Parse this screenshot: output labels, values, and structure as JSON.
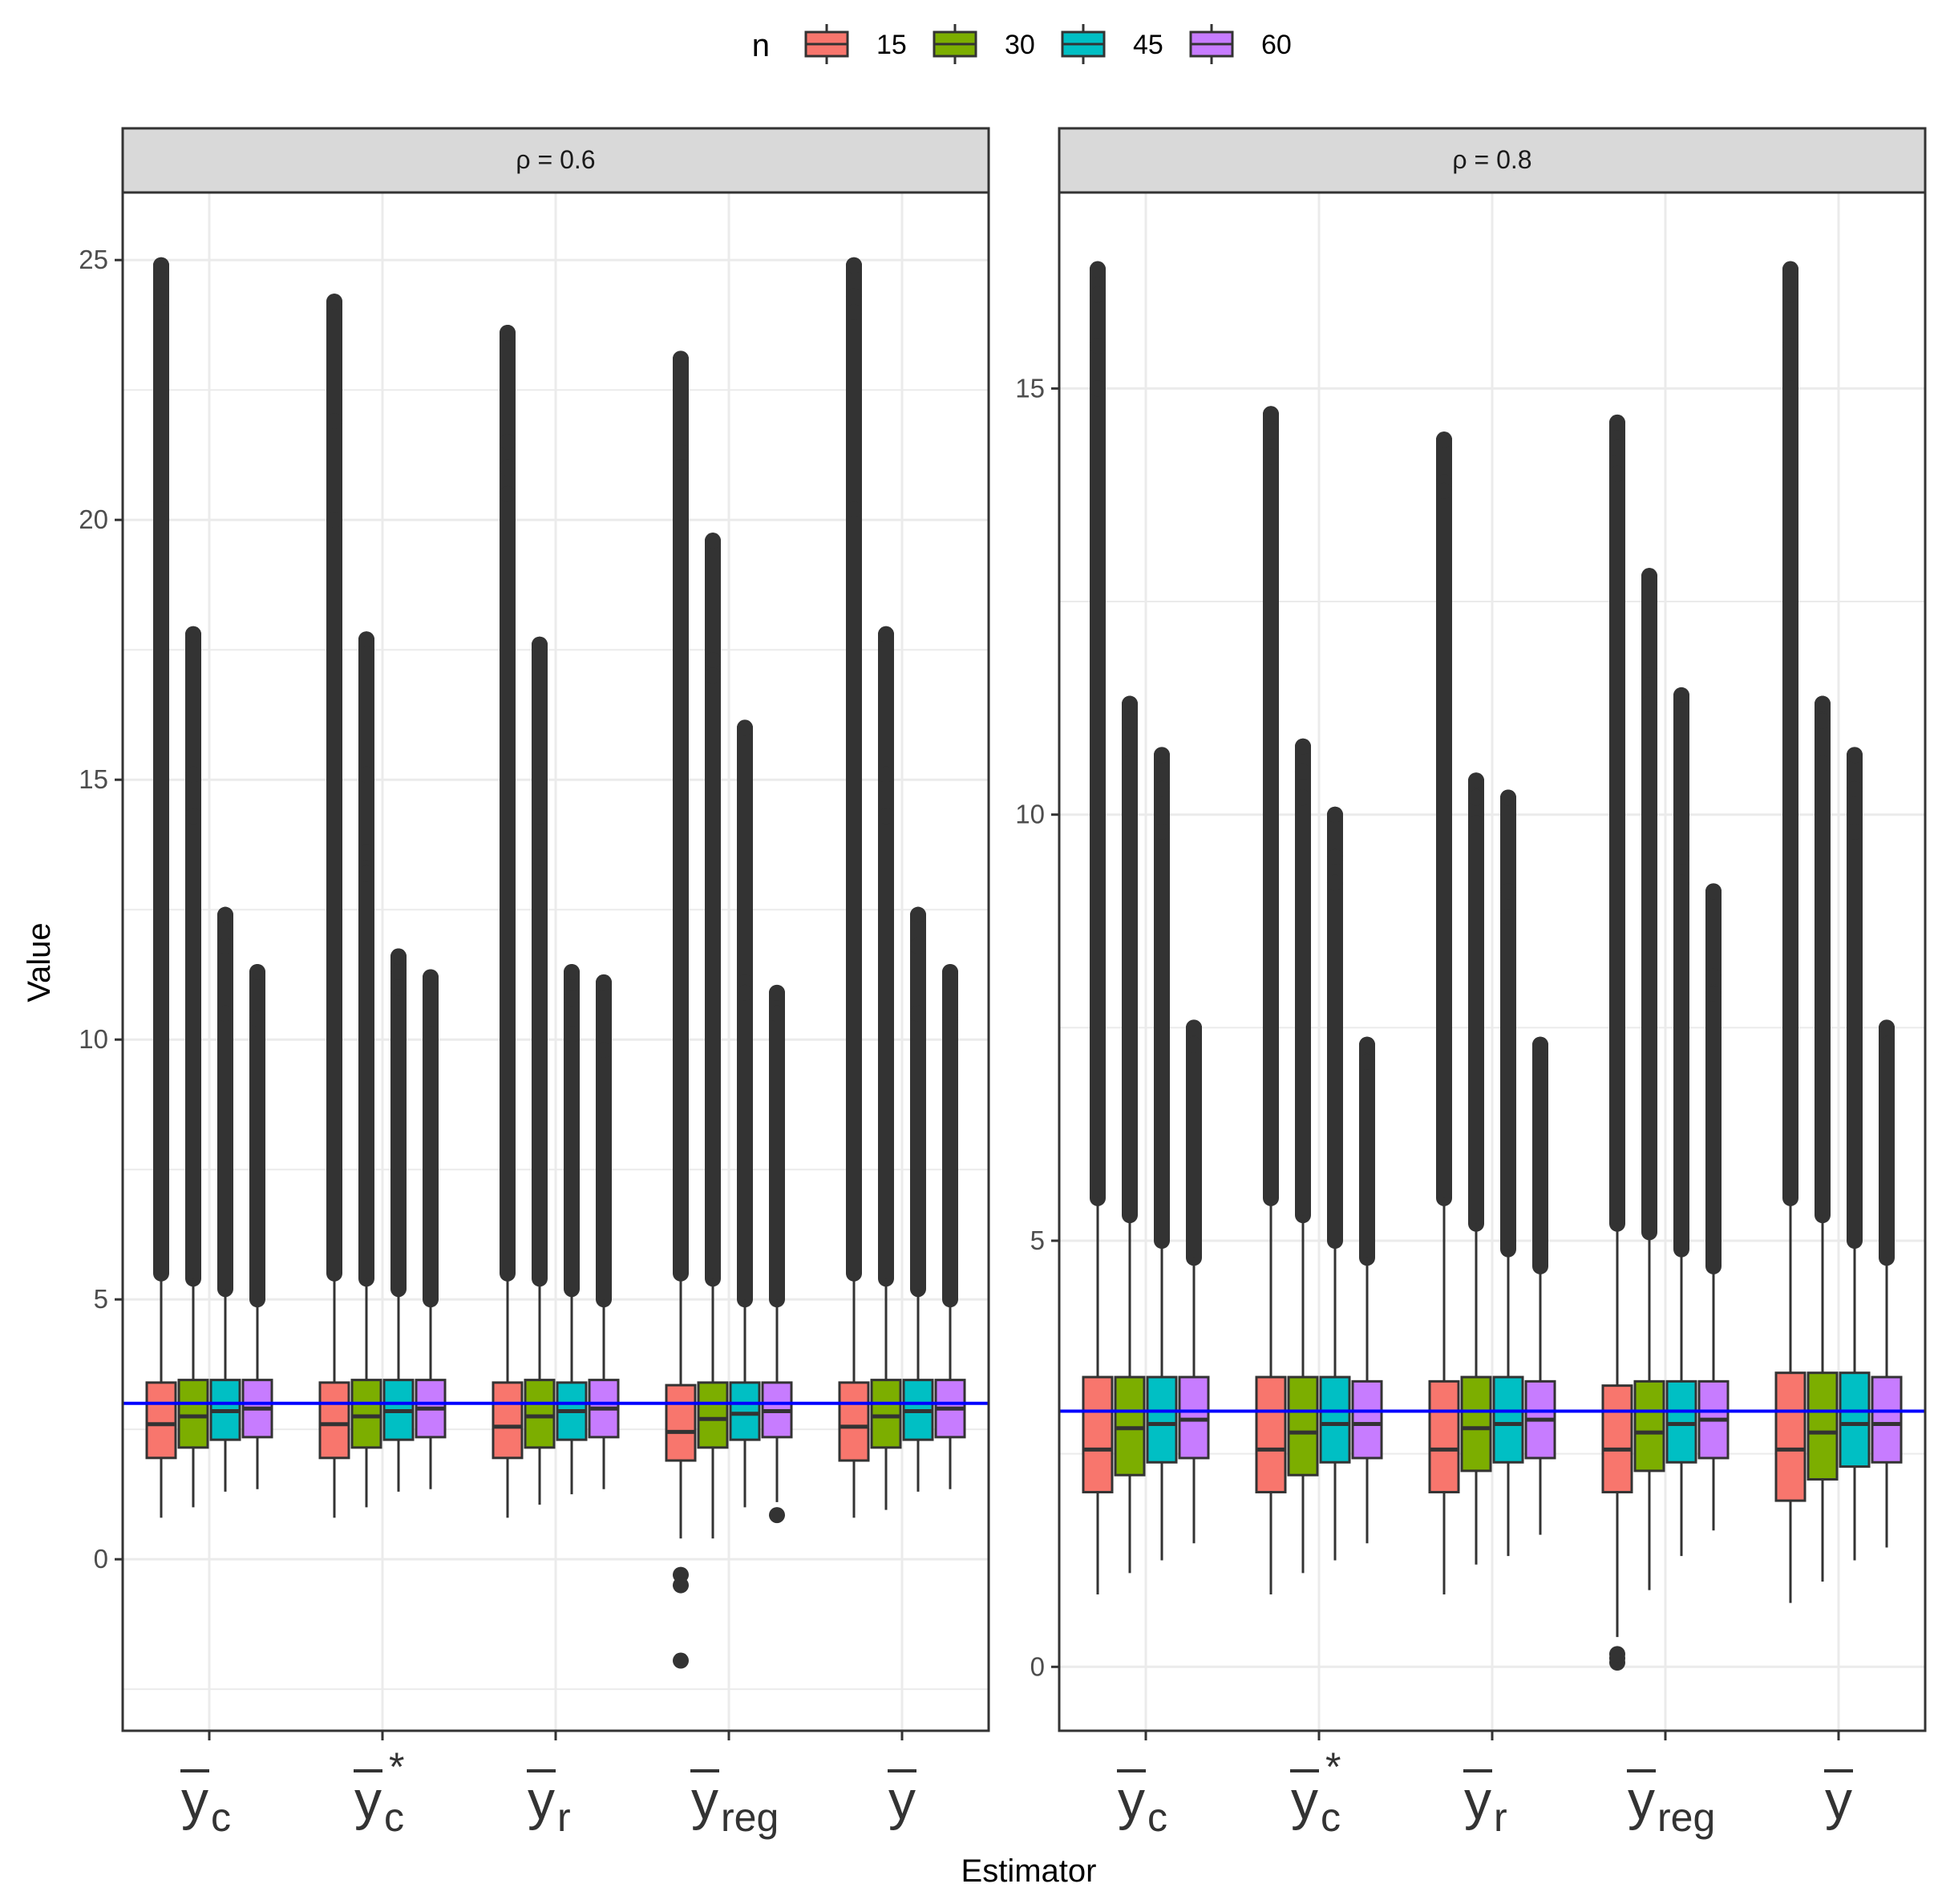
{
  "chart_data": {
    "type": "boxplot",
    "xlabel": "Estimator",
    "ylabel": "Value",
    "legend": {
      "title": "n",
      "position": "top",
      "entries": [
        "15",
        "30",
        "45",
        "60"
      ],
      "colors": [
        "#F8766D",
        "#7CAE00",
        "#00BFC4",
        "#C77CFF"
      ]
    },
    "reference_line": {
      "value": 3.0,
      "color": "#0000FF"
    },
    "categories": [
      {
        "key": "yc",
        "main": "y",
        "sub": "c",
        "sup": ""
      },
      {
        "key": "yc_star",
        "main": "y",
        "sub": "c",
        "sup": "*"
      },
      {
        "key": "yr",
        "main": "y",
        "sub": "r",
        "sup": ""
      },
      {
        "key": "yreg",
        "main": "y",
        "sub": "reg",
        "sup": ""
      },
      {
        "key": "ybar",
        "main": "y",
        "sub": "",
        "sup": ""
      }
    ],
    "panels": [
      {
        "strip": "ρ = 0.6",
        "ylim": [
          -3.3,
          26.3
        ],
        "yticks": [
          0,
          5,
          10,
          15,
          20,
          25
        ],
        "boxes": [
          [
            {
              "n": "15",
              "q1": 1.95,
              "median": 2.6,
              "q3": 3.4,
              "wlo": 0.8,
              "whi": 5.5,
              "omax": 24.9,
              "extras": [
                24.3,
                24.0,
                20.2
              ],
              "omin": null
            },
            {
              "n": "30",
              "q1": 2.15,
              "median": 2.75,
              "q3": 3.45,
              "wlo": 1.0,
              "whi": 5.4,
              "omax": 17.8,
              "extras": [
                15.1,
                14.3
              ],
              "omin": null
            },
            {
              "n": "45",
              "q1": 2.3,
              "median": 2.85,
              "q3": 3.45,
              "wlo": 1.3,
              "whi": 5.2,
              "omax": 12.4,
              "extras": [
                11.8,
                10.5
              ],
              "omin": null
            },
            {
              "n": "60",
              "q1": 2.35,
              "median": 2.9,
              "q3": 3.45,
              "wlo": 1.35,
              "whi": 5.0,
              "omax": 11.3,
              "extras": [
                10.4
              ],
              "omin": null
            }
          ],
          [
            {
              "n": "15",
              "q1": 1.95,
              "median": 2.6,
              "q3": 3.4,
              "wlo": 0.8,
              "whi": 5.5,
              "omax": 24.2,
              "extras": [
                21.9,
                20.0
              ],
              "omin": null
            },
            {
              "n": "30",
              "q1": 2.15,
              "median": 2.75,
              "q3": 3.45,
              "wlo": 1.0,
              "whi": 5.4,
              "omax": 17.7,
              "extras": [
                15.1,
                13.6,
                13.2
              ],
              "omin": null
            },
            {
              "n": "45",
              "q1": 2.3,
              "median": 2.85,
              "q3": 3.45,
              "wlo": 1.3,
              "whi": 5.2,
              "omax": 11.6,
              "extras": [
                11.3,
                11.0
              ],
              "omin": null
            },
            {
              "n": "60",
              "q1": 2.35,
              "median": 2.9,
              "q3": 3.45,
              "wlo": 1.35,
              "whi": 5.0,
              "omax": 11.2,
              "extras": [
                10.1
              ],
              "omin": null
            }
          ],
          [
            {
              "n": "15",
              "q1": 1.95,
              "median": 2.55,
              "q3": 3.4,
              "wlo": 0.8,
              "whi": 5.5,
              "omax": 23.6,
              "extras": [
                21.5,
                21.0,
                20.5
              ],
              "omin": null
            },
            {
              "n": "30",
              "q1": 2.15,
              "median": 2.75,
              "q3": 3.45,
              "wlo": 1.05,
              "whi": 5.4,
              "omax": 17.6,
              "extras": [
                15.1,
                14.3,
                13.5
              ],
              "omin": null
            },
            {
              "n": "45",
              "q1": 2.3,
              "median": 2.85,
              "q3": 3.4,
              "wlo": 1.25,
              "whi": 5.2,
              "omax": 11.3,
              "extras": [
                10.8,
                10.1
              ],
              "omin": null
            },
            {
              "n": "60",
              "q1": 2.35,
              "median": 2.9,
              "q3": 3.45,
              "wlo": 1.35,
              "whi": 5.0,
              "omax": 11.1,
              "extras": [
                9.8
              ],
              "omin": null
            }
          ],
          [
            {
              "n": "15",
              "q1": 1.9,
              "median": 2.45,
              "q3": 3.35,
              "wlo": 0.4,
              "whi": 5.5,
              "omax": 23.1,
              "extras": [
                21.3,
                21.0
              ],
              "omin": -1.95,
              "low_extras": [
                -0.3,
                -0.5
              ]
            },
            {
              "n": "30",
              "q1": 2.15,
              "median": 2.7,
              "q3": 3.4,
              "wlo": 0.4,
              "whi": 5.4,
              "omax": 19.6,
              "extras": [
                17.3,
                17.0
              ],
              "omin": null
            },
            {
              "n": "45",
              "q1": 2.3,
              "median": 2.8,
              "q3": 3.4,
              "wlo": 1.0,
              "whi": 5.0,
              "omax": 16.0,
              "extras": [
                11.1,
                10.9
              ],
              "omin": null
            },
            {
              "n": "60",
              "q1": 2.35,
              "median": 2.85,
              "q3": 3.4,
              "wlo": 1.1,
              "whi": 5.0,
              "omax": 10.9,
              "extras": [
                10.5
              ],
              "omin": 0.85
            }
          ],
          [
            {
              "n": "15",
              "q1": 1.9,
              "median": 2.55,
              "q3": 3.4,
              "wlo": 0.8,
              "whi": 5.5,
              "omax": 24.9,
              "extras": [
                24.3,
                24.0,
                20.2
              ],
              "omin": null
            },
            {
              "n": "30",
              "q1": 2.15,
              "median": 2.75,
              "q3": 3.45,
              "wlo": 0.95,
              "whi": 5.4,
              "omax": 17.8,
              "extras": [
                15.1,
                14.3
              ],
              "omin": null
            },
            {
              "n": "45",
              "q1": 2.3,
              "median": 2.85,
              "q3": 3.45,
              "wlo": 1.3,
              "whi": 5.2,
              "omax": 12.4,
              "extras": [
                11.8,
                10.5
              ],
              "omin": null
            },
            {
              "n": "60",
              "q1": 2.35,
              "median": 2.9,
              "q3": 3.45,
              "wlo": 1.35,
              "whi": 5.0,
              "omax": 11.3,
              "extras": [
                10.4
              ],
              "omin": null
            }
          ]
        ]
      },
      {
        "strip": "ρ = 0.8",
        "ylim": [
          -0.75,
          17.3
        ],
        "yticks": [
          0,
          5,
          10,
          15
        ],
        "boxes": [
          [
            {
              "n": "15",
              "q1": 2.05,
              "median": 2.55,
              "q3": 3.4,
              "wlo": 0.85,
              "whi": 5.5,
              "omax": 16.4,
              "extras": [
                16.1,
                15.5,
                15.0
              ],
              "omin": null
            },
            {
              "n": "30",
              "q1": 2.25,
              "median": 2.8,
              "q3": 3.4,
              "wlo": 1.1,
              "whi": 5.3,
              "omax": 11.3,
              "extras": [
                11.1,
                10.6
              ],
              "omin": null
            },
            {
              "n": "45",
              "q1": 2.4,
              "median": 2.85,
              "q3": 3.4,
              "wlo": 1.25,
              "whi": 5.0,
              "omax": 10.7,
              "extras": [
                10.3,
                9.8
              ],
              "omin": null
            },
            {
              "n": "60",
              "q1": 2.45,
              "median": 2.9,
              "q3": 3.4,
              "wlo": 1.45,
              "whi": 4.8,
              "omax": 7.5,
              "extras": [
                7.3
              ],
              "omin": null
            }
          ],
          [
            {
              "n": "15",
              "q1": 2.05,
              "median": 2.55,
              "q3": 3.4,
              "wlo": 0.85,
              "whi": 5.5,
              "omax": 14.7,
              "extras": [
                14.5,
                14.2
              ],
              "omin": null
            },
            {
              "n": "30",
              "q1": 2.25,
              "median": 2.75,
              "q3": 3.4,
              "wlo": 1.1,
              "whi": 5.3,
              "omax": 10.8,
              "extras": [
                10.5,
                10.2
              ],
              "omin": null
            },
            {
              "n": "45",
              "q1": 2.4,
              "median": 2.85,
              "q3": 3.4,
              "wlo": 1.25,
              "whi": 5.0,
              "omax": 10.0,
              "extras": [
                9.5,
                9.2
              ],
              "omin": null
            },
            {
              "n": "60",
              "q1": 2.45,
              "median": 2.85,
              "q3": 3.35,
              "wlo": 1.45,
              "whi": 4.8,
              "omax": 7.3,
              "extras": [
                7.1
              ],
              "omin": null
            }
          ],
          [
            {
              "n": "15",
              "q1": 2.05,
              "median": 2.55,
              "q3": 3.35,
              "wlo": 0.85,
              "whi": 5.5,
              "omax": 14.4,
              "extras": [
                13.9,
                13.8
              ],
              "omin": null
            },
            {
              "n": "30",
              "q1": 2.3,
              "median": 2.8,
              "q3": 3.4,
              "wlo": 1.2,
              "whi": 5.2,
              "omax": 10.4,
              "extras": [
                10.2,
                9.9
              ],
              "omin": null
            },
            {
              "n": "45",
              "q1": 2.4,
              "median": 2.85,
              "q3": 3.4,
              "wlo": 1.3,
              "whi": 4.9,
              "omax": 10.2,
              "extras": [
                9.1,
                8.8
              ],
              "omin": null
            },
            {
              "n": "60",
              "q1": 2.45,
              "median": 2.9,
              "q3": 3.35,
              "wlo": 1.55,
              "whi": 4.7,
              "omax": 7.3,
              "extras": [
                7.1
              ],
              "omin": null
            }
          ],
          [
            {
              "n": "15",
              "q1": 2.05,
              "median": 2.55,
              "q3": 3.3,
              "wlo": 0.35,
              "whi": 5.2,
              "omax": 14.6,
              "extras": [
                14.3,
                14.0
              ],
              "omin": 0.05,
              "low_extras": [
                0.1,
                0.15
              ]
            },
            {
              "n": "30",
              "q1": 2.3,
              "median": 2.75,
              "q3": 3.35,
              "wlo": 0.9,
              "whi": 5.1,
              "omax": 12.8,
              "extras": [
                11.7,
                11.3
              ],
              "omin": null
            },
            {
              "n": "45",
              "q1": 2.4,
              "median": 2.85,
              "q3": 3.35,
              "wlo": 1.3,
              "whi": 4.9,
              "omax": 11.4,
              "extras": [
                9.5,
                9.2
              ],
              "omin": null
            },
            {
              "n": "60",
              "q1": 2.45,
              "median": 2.9,
              "q3": 3.35,
              "wlo": 1.6,
              "whi": 4.7,
              "omax": 9.1,
              "extras": [
                8.1,
                7.9
              ],
              "omin": null
            }
          ],
          [
            {
              "n": "15",
              "q1": 1.95,
              "median": 2.55,
              "q3": 3.45,
              "wlo": 0.75,
              "whi": 5.5,
              "omax": 16.4,
              "extras": [
                16.1,
                15.5,
                15.0
              ],
              "omin": null
            },
            {
              "n": "30",
              "q1": 2.2,
              "median": 2.75,
              "q3": 3.45,
              "wlo": 1.0,
              "whi": 5.3,
              "omax": 11.3,
              "extras": [
                11.1,
                10.6
              ],
              "omin": null
            },
            {
              "n": "45",
              "q1": 2.35,
              "median": 2.85,
              "q3": 3.45,
              "wlo": 1.25,
              "whi": 5.0,
              "omax": 10.7,
              "extras": [
                10.3,
                9.8
              ],
              "omin": null
            },
            {
              "n": "60",
              "q1": 2.4,
              "median": 2.85,
              "q3": 3.4,
              "wlo": 1.4,
              "whi": 4.8,
              "omax": 7.5,
              "extras": [
                7.3
              ],
              "omin": null
            }
          ]
        ]
      }
    ]
  }
}
